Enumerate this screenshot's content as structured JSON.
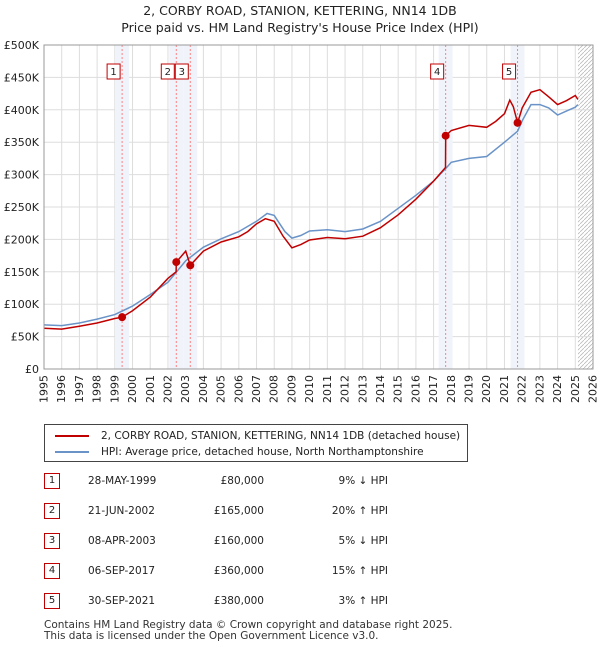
{
  "header": {
    "title_line1": "2, CORBY ROAD, STANION, KETTERING, NN14 1DB",
    "title_line2": "Price paid vs. HM Land Registry's House Price Index (HPI)"
  },
  "colors": {
    "property": "#c00000",
    "hpi": "#6a93c8",
    "grid": "#dddddd",
    "plot_bg": "#f0f4fa",
    "marker_line": "#ff8080"
  },
  "chart_data": {
    "type": "line",
    "title": "2, CORBY ROAD, STANION, KETTERING, NN14 1DB — Price paid vs. HM Land Registry's House Price Index (HPI)",
    "xlabel": "",
    "ylabel": "",
    "xlim": [
      1995,
      2026
    ],
    "ylim": [
      0,
      500000
    ],
    "x_ticks": [
      1995,
      1996,
      1997,
      1998,
      1999,
      2000,
      2001,
      2002,
      2003,
      2004,
      2005,
      2006,
      2007,
      2008,
      2009,
      2010,
      2011,
      2012,
      2013,
      2014,
      2015,
      2016,
      2017,
      2018,
      2019,
      2020,
      2021,
      2022,
      2023,
      2024,
      2025,
      2026
    ],
    "y_ticks": [
      0,
      50000,
      100000,
      150000,
      200000,
      250000,
      300000,
      350000,
      400000,
      450000,
      500000
    ],
    "y_tick_labels": [
      "£0",
      "£50K",
      "£100K",
      "£150K",
      "£200K",
      "£250K",
      "£300K",
      "£350K",
      "£400K",
      "£450K",
      "£500K"
    ],
    "grid": true,
    "series": [
      {
        "name": "2, CORBY ROAD, STANION, KETTERING, NN14 1DB (detached house)",
        "color": "#c00000",
        "points": [
          [
            1995.0,
            63000
          ],
          [
            1996.0,
            61500
          ],
          [
            1997.0,
            66000
          ],
          [
            1998.0,
            71000
          ],
          [
            1999.0,
            78000
          ],
          [
            1999.41,
            80000
          ],
          [
            2000.0,
            90000
          ],
          [
            2001.0,
            111000
          ],
          [
            2002.0,
            140000
          ],
          [
            2002.46,
            150000
          ],
          [
            2002.47,
            165000
          ],
          [
            2003.0,
            182000
          ],
          [
            2003.26,
            160000
          ],
          [
            2004.0,
            182000
          ],
          [
            2005.0,
            196000
          ],
          [
            2006.0,
            204000
          ],
          [
            2006.5,
            212000
          ],
          [
            2007.0,
            224000
          ],
          [
            2007.5,
            232000
          ],
          [
            2008.0,
            228000
          ],
          [
            2008.5,
            205000
          ],
          [
            2009.0,
            187000
          ],
          [
            2009.5,
            192000
          ],
          [
            2010.0,
            199000
          ],
          [
            2011.0,
            203000
          ],
          [
            2012.0,
            201000
          ],
          [
            2013.0,
            205000
          ],
          [
            2014.0,
            218000
          ],
          [
            2015.0,
            238000
          ],
          [
            2016.0,
            262000
          ],
          [
            2017.0,
            290000
          ],
          [
            2017.67,
            311000
          ],
          [
            2017.68,
            360000
          ],
          [
            2018.0,
            368000
          ],
          [
            2019.0,
            376000
          ],
          [
            2020.0,
            373000
          ],
          [
            2020.5,
            382000
          ],
          [
            2021.0,
            394000
          ],
          [
            2021.3,
            415000
          ],
          [
            2021.5,
            405000
          ],
          [
            2021.74,
            380000
          ],
          [
            2022.0,
            403000
          ],
          [
            2022.5,
            427000
          ],
          [
            2023.0,
            431000
          ],
          [
            2023.5,
            420000
          ],
          [
            2024.0,
            408000
          ],
          [
            2024.5,
            414000
          ],
          [
            2025.0,
            422000
          ],
          [
            2025.15,
            416000
          ]
        ]
      },
      {
        "name": "HPI: Average price, detached house, North Northamptonshire",
        "color": "#6a93c8",
        "points": [
          [
            1995.0,
            68000
          ],
          [
            1996.0,
            67000
          ],
          [
            1997.0,
            71000
          ],
          [
            1998.0,
            77000
          ],
          [
            1999.0,
            84000
          ],
          [
            2000.0,
            97000
          ],
          [
            2001.0,
            115000
          ],
          [
            2002.0,
            134000
          ],
          [
            2003.0,
            167000
          ],
          [
            2004.0,
            188000
          ],
          [
            2005.0,
            201000
          ],
          [
            2006.0,
            212000
          ],
          [
            2007.0,
            228000
          ],
          [
            2007.6,
            240000
          ],
          [
            2008.0,
            237000
          ],
          [
            2008.6,
            212000
          ],
          [
            2009.0,
            202000
          ],
          [
            2009.5,
            206000
          ],
          [
            2010.0,
            213000
          ],
          [
            2011.0,
            215000
          ],
          [
            2012.0,
            212000
          ],
          [
            2013.0,
            216000
          ],
          [
            2014.0,
            228000
          ],
          [
            2015.0,
            248000
          ],
          [
            2016.0,
            268000
          ],
          [
            2017.0,
            290000
          ],
          [
            2017.67,
            309000
          ],
          [
            2018.0,
            319000
          ],
          [
            2019.0,
            325000
          ],
          [
            2020.0,
            328000
          ],
          [
            2021.0,
            350000
          ],
          [
            2021.74,
            367000
          ],
          [
            2022.0,
            383000
          ],
          [
            2022.5,
            408000
          ],
          [
            2023.0,
            408000
          ],
          [
            2023.5,
            403000
          ],
          [
            2024.0,
            392000
          ],
          [
            2024.5,
            398000
          ],
          [
            2025.0,
            404000
          ],
          [
            2025.15,
            408000
          ]
        ]
      }
    ],
    "sales": [
      {
        "label": "1",
        "date": "28-MAY-1999",
        "x": 1999.41,
        "price": "£80,000",
        "value": 80000,
        "hpi": "9% ↓ HPI"
      },
      {
        "label": "2",
        "date": "21-JUN-2002",
        "x": 2002.47,
        "price": "£165,000",
        "value": 165000,
        "hpi": "20% ↑ HPI"
      },
      {
        "label": "3",
        "date": "08-APR-2003",
        "x": 2003.26,
        "price": "£160,000",
        "value": 160000,
        "hpi": "5% ↓ HPI"
      },
      {
        "label": "4",
        "date": "06-SEP-2017",
        "x": 2017.68,
        "price": "£360,000",
        "value": 360000,
        "hpi": "15% ↑ HPI"
      },
      {
        "label": "5",
        "date": "30-SEP-2021",
        "x": 2021.74,
        "price": "£380,000",
        "value": 380000,
        "hpi": "3% ↑ HPI"
      }
    ],
    "annotations": {
      "forecast_start": 2025.15
    }
  },
  "legend": {
    "property_label": "2, CORBY ROAD, STANION, KETTERING, NN14 1DB (detached house)",
    "hpi_label": "HPI: Average price, detached house, North Northamptonshire"
  },
  "footer": {
    "line1": "Contains HM Land Registry data © Crown copyright and database right 2025.",
    "line2": "This data is licensed under the Open Government Licence v3.0."
  }
}
